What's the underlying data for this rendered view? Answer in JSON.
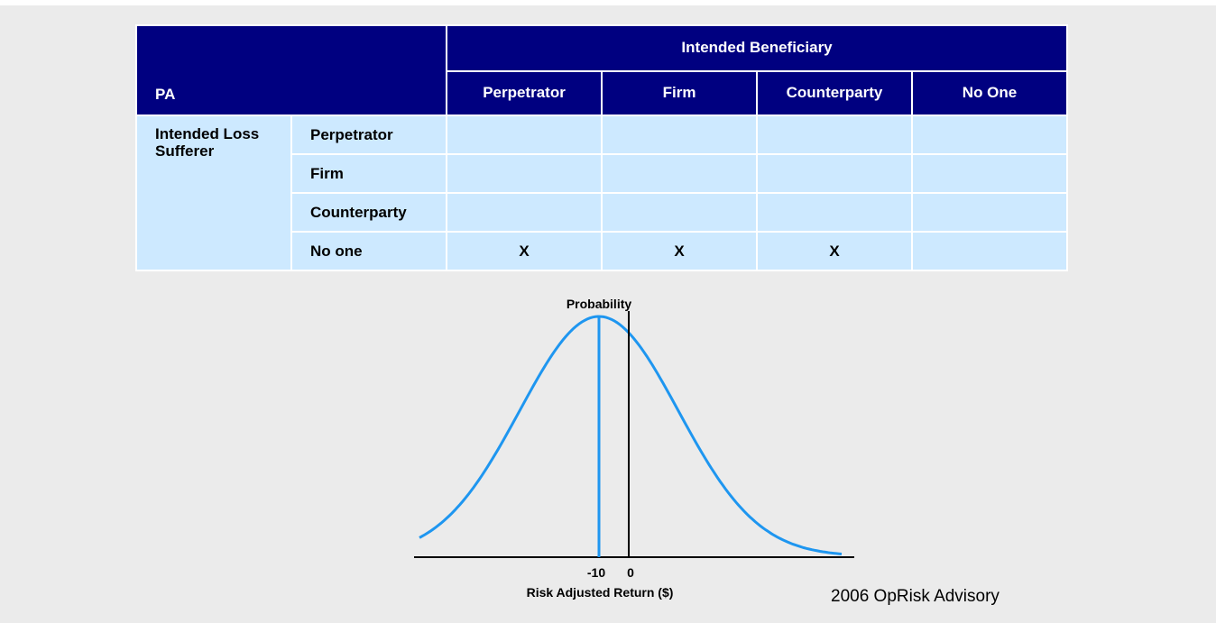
{
  "table": {
    "corner": "PA",
    "group_header": "Intended Beneficiary",
    "columns": [
      "Perpetrator",
      "Firm",
      "Counterparty",
      "No One"
    ],
    "row_group": "Intended Loss Sufferer",
    "rows": [
      {
        "label": "Perpetrator",
        "cells": [
          "",
          "",
          "",
          ""
        ]
      },
      {
        "label": "Firm",
        "cells": [
          "",
          "",
          "",
          ""
        ]
      },
      {
        "label": "Counterparty",
        "cells": [
          "",
          "",
          "",
          ""
        ]
      },
      {
        "label": "No one",
        "cells": [
          "X",
          "X",
          "X",
          ""
        ]
      }
    ]
  },
  "diagram": {
    "y_label": "Probability",
    "ticks": [
      "-10",
      "0"
    ],
    "x_label": "Risk Adjusted Return ($)"
  },
  "footer": "2006 OpRisk Advisory"
}
